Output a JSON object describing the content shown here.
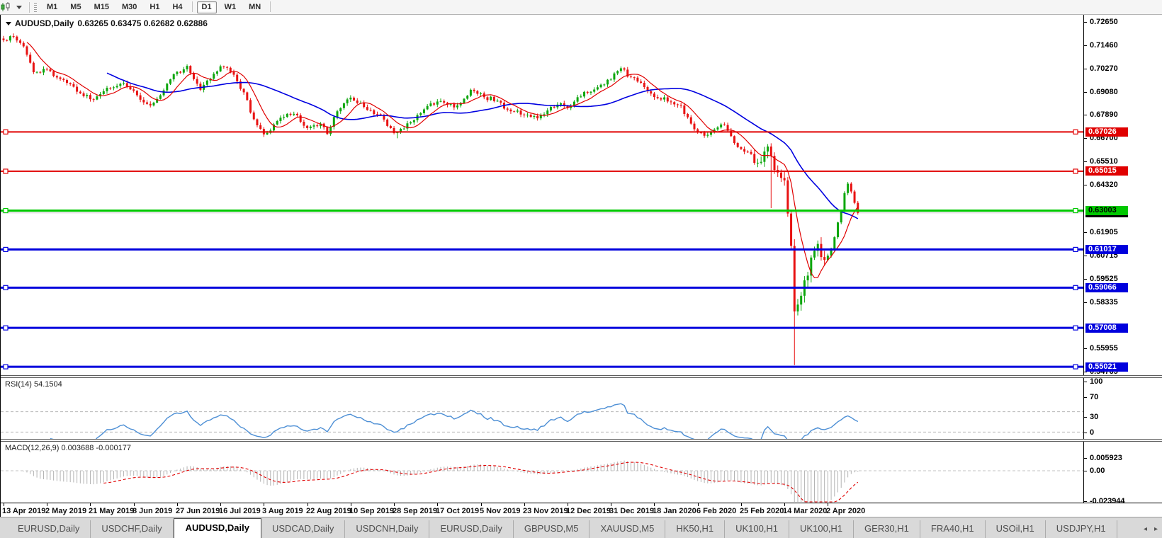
{
  "toolbar": {
    "timeframes": [
      {
        "label": "M1",
        "active": false
      },
      {
        "label": "M5",
        "active": false
      },
      {
        "label": "M15",
        "active": false
      },
      {
        "label": "M30",
        "active": false
      },
      {
        "label": "H1",
        "active": false
      },
      {
        "label": "H4",
        "active": false
      },
      {
        "label": "D1",
        "active": true
      },
      {
        "label": "W1",
        "active": false
      },
      {
        "label": "MN",
        "active": false
      }
    ]
  },
  "chart": {
    "title_symbol": "AUDUSD,Daily",
    "title_ohlc": "0.63265 0.63475 0.62682 0.62886",
    "price_axis_ticks": [
      "0.72650",
      "0.71460",
      "0.70270",
      "0.69080",
      "0.67890",
      "0.66700",
      "0.65510",
      "0.64320",
      "0.61905",
      "0.60715",
      "0.59525",
      "0.58335",
      "0.55955",
      "0.54765"
    ],
    "hlines": [
      {
        "price": "0.67026",
        "value": 0.67026,
        "color": "#e00000",
        "width": 2,
        "badge_bg": "#e00000",
        "badge_fg": "#ffffff"
      },
      {
        "price": "0.65015",
        "value": 0.65015,
        "color": "#e00000",
        "width": 2,
        "badge_bg": "#e00000",
        "badge_fg": "#ffffff"
      },
      {
        "price": "0.63003",
        "value": 0.63003,
        "color": "#00c800",
        "width": 3,
        "badge_bg": "#00c800",
        "badge_fg": "#000000"
      },
      {
        "price": "0.61017",
        "value": 0.61017,
        "color": "#0000dd",
        "width": 3,
        "badge_bg": "#0000dd",
        "badge_fg": "#ffffff"
      },
      {
        "price": "0.59066",
        "value": 0.59066,
        "color": "#0000dd",
        "width": 3,
        "badge_bg": "#0000dd",
        "badge_fg": "#ffffff"
      },
      {
        "price": "0.57008",
        "value": 0.57008,
        "color": "#0000dd",
        "width": 3,
        "badge_bg": "#0000dd",
        "badge_fg": "#ffffff"
      },
      {
        "price": "0.55021",
        "value": 0.55021,
        "color": "#0000dd",
        "width": 3,
        "badge_bg": "#0000dd",
        "badge_fg": "#ffffff"
      }
    ],
    "current_price": {
      "text": "0.62886",
      "value": 0.62886,
      "badge_bg": "#000000",
      "badge_fg": "#ffffff"
    },
    "colors": {
      "bull": "#0ca60c",
      "bear": "#e81212",
      "ma_fast": "#e00000",
      "ma_slow": "#0000e0",
      "price_line": "#c9c9c9"
    }
  },
  "rsi": {
    "label": "RSI(14) 54.1504",
    "period": 14,
    "current": 54.1504,
    "scale_labels": [
      {
        "text": "100",
        "value": 100
      },
      {
        "text": "70",
        "value": 70
      },
      {
        "text": "30",
        "value": 30
      },
      {
        "text": "0",
        "value": 0
      }
    ],
    "dashed_levels": [
      70,
      30
    ],
    "line_color": "#4d8fd5"
  },
  "macd": {
    "label": "MACD(12,26,9) 0.003688 -0.000177",
    "fast": 12,
    "slow": 26,
    "signal": 9,
    "current_main": 0.003688,
    "current_signal": -0.000177,
    "scale_labels": [
      {
        "text": "0.005923",
        "value": 0.005923
      },
      {
        "text": "0.00",
        "value": 0
      },
      {
        "text": "-0.023944",
        "value": -0.023944
      }
    ],
    "hist_color": "#b3b3b3",
    "signal_color": "#e00000"
  },
  "date_axis": {
    "labels": [
      "13 Apr 2019",
      "2 May 2019",
      "21 May 2019",
      "8 Jun 2019",
      "27 Jun 2019",
      "16 Jul 2019",
      "3 Aug 2019",
      "22 Aug 2019",
      "10 Sep 2019",
      "28 Sep 2019",
      "17 Oct 2019",
      "5 Nov 2019",
      "23 Nov 2019",
      "12 Dec 2019",
      "31 Dec 2019",
      "18 Jan 2020",
      "6 Feb 2020",
      "25 Feb 2020",
      "14 Mar 2020",
      "2 Apr 2020"
    ]
  },
  "tabs": {
    "items": [
      {
        "label": "EURUSD,Daily",
        "active": false
      },
      {
        "label": "USDCHF,Daily",
        "active": false
      },
      {
        "label": "AUDUSD,Daily",
        "active": true
      },
      {
        "label": "USDCAD,Daily",
        "active": false
      },
      {
        "label": "USDCNH,Daily",
        "active": false
      },
      {
        "label": "EURUSD,Daily",
        "active": false
      },
      {
        "label": "GBPUSD,M5",
        "active": false
      },
      {
        "label": "XAUUSD,M5",
        "active": false
      },
      {
        "label": "HK50,H1",
        "active": false
      },
      {
        "label": "UK100,H1",
        "active": false
      },
      {
        "label": "UK100,H1",
        "active": false
      },
      {
        "label": "GER30,H1",
        "active": false
      },
      {
        "label": "FRA40,H1",
        "active": false
      },
      {
        "label": "USOil,H1",
        "active": false
      },
      {
        "label": "USDJPY,H1",
        "active": false
      }
    ],
    "nav_prev": "◂",
    "nav_next": "▸"
  },
  "chart_data": {
    "type": "candlestick",
    "symbol": "AUDUSD",
    "timeframe": "Daily",
    "title": "AUDUSD Daily with RSI(14) and MACD(12,26,9)",
    "visible_range": {
      "price_max": 0.7301,
      "price_min": 0.5459,
      "date_start": "13 Apr 2019",
      "date_end": "17 Apr 2020"
    },
    "candle_count": 257,
    "candles_per_label": 13,
    "anchors": [
      [
        0,
        0.7172
      ],
      [
        3,
        0.719
      ],
      [
        6,
        0.714
      ],
      [
        9,
        0.7008
      ],
      [
        13,
        0.7022
      ],
      [
        18,
        0.6968
      ],
      [
        23,
        0.69
      ],
      [
        27,
        0.6868
      ],
      [
        31,
        0.6928
      ],
      [
        36,
        0.6952
      ],
      [
        40,
        0.689
      ],
      [
        44,
        0.6838
      ],
      [
        48,
        0.6915
      ],
      [
        51,
        0.6998
      ],
      [
        55,
        0.704
      ],
      [
        59,
        0.6918
      ],
      [
        62,
        0.6975
      ],
      [
        65,
        0.7038
      ],
      [
        69,
        0.6995
      ],
      [
        72,
        0.6905
      ],
      [
        74,
        0.6802
      ],
      [
        78,
        0.669
      ],
      [
        82,
        0.6758
      ],
      [
        85,
        0.6795
      ],
      [
        88,
        0.6788
      ],
      [
        91,
        0.6722
      ],
      [
        95,
        0.6745
      ],
      [
        97,
        0.6692
      ],
      [
        100,
        0.6808
      ],
      [
        104,
        0.6878
      ],
      [
        108,
        0.683
      ],
      [
        113,
        0.6788
      ],
      [
        116,
        0.6722
      ],
      [
        118,
        0.67
      ],
      [
        122,
        0.6752
      ],
      [
        126,
        0.6818
      ],
      [
        130,
        0.6858
      ],
      [
        133,
        0.6842
      ],
      [
        136,
        0.6838
      ],
      [
        140,
        0.6918
      ],
      [
        144,
        0.688
      ],
      [
        148,
        0.6862
      ],
      [
        152,
        0.6808
      ],
      [
        156,
        0.6788
      ],
      [
        160,
        0.6772
      ],
      [
        163,
        0.6812
      ],
      [
        166,
        0.6842
      ],
      [
        169,
        0.6825
      ],
      [
        172,
        0.688
      ],
      [
        176,
        0.6908
      ],
      [
        180,
        0.6945
      ],
      [
        185,
        0.7028
      ],
      [
        188,
        0.6982
      ],
      [
        192,
        0.6932
      ],
      [
        196,
        0.6875
      ],
      [
        200,
        0.6855
      ],
      [
        203,
        0.6838
      ],
      [
        206,
        0.6745
      ],
      [
        208,
        0.67
      ],
      [
        211,
        0.6688
      ],
      [
        213,
        0.6715
      ],
      [
        216,
        0.6738
      ],
      [
        220,
        0.6625
      ],
      [
        223,
        0.66
      ],
      [
        226,
        0.6545
      ],
      [
        229,
        0.6628
      ],
      [
        230,
        0.658
      ],
      [
        232,
        0.6495
      ],
      [
        234,
        0.6455
      ],
      [
        236,
        0.612
      ],
      [
        237,
        0.5785
      ],
      [
        238,
        0.582
      ],
      [
        239,
        0.5865
      ],
      [
        241,
        0.5968
      ],
      [
        243,
        0.6095
      ],
      [
        244,
        0.613
      ],
      [
        246,
        0.6048
      ],
      [
        248,
        0.6098
      ],
      [
        250,
        0.624
      ],
      [
        252,
        0.639
      ],
      [
        253,
        0.6438
      ],
      [
        254,
        0.6398
      ],
      [
        255,
        0.634
      ],
      [
        256,
        0.6289
      ]
    ],
    "special_wicks": [
      [
        3,
        "high",
        0.7206
      ],
      [
        27,
        "low",
        0.6855
      ],
      [
        44,
        "low",
        0.6832
      ],
      [
        55,
        "high",
        0.7048
      ],
      [
        65,
        "high",
        0.7046
      ],
      [
        78,
        "low",
        0.6677
      ],
      [
        118,
        "low",
        0.667
      ],
      [
        185,
        "high",
        0.7032
      ],
      [
        230,
        "low",
        0.6313
      ],
      [
        237,
        "low",
        0.551
      ],
      [
        253,
        "high",
        0.6445
      ]
    ],
    "ma_fast_period": 8,
    "ma_slow_period": 32,
    "noise_amp": 0.0015,
    "crash_zone": [
      225,
      246
    ],
    "crash_vol_mult": 2.6
  }
}
